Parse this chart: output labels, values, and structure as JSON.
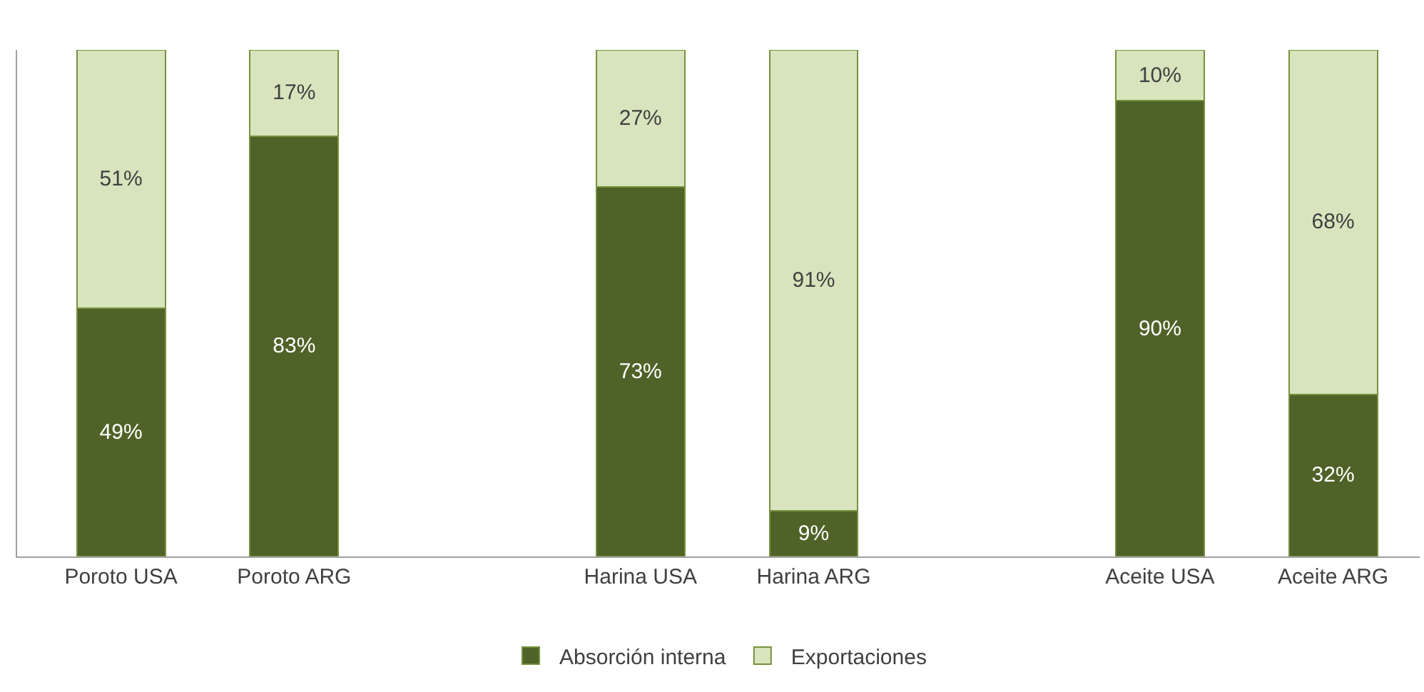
{
  "chart_data": {
    "type": "bar",
    "stacked": true,
    "relative": false,
    "categories": [
      "Poroto USA",
      "Poroto ARG",
      null,
      "Harina USA",
      "Harina ARG",
      null,
      "Aceite USA",
      "Aceite ARG"
    ],
    "series": [
      {
        "name": "Absorción interna",
        "color": "#4f6228",
        "values": [
          49,
          83,
          null,
          73,
          9,
          null,
          90,
          32
        ],
        "value_labels": [
          "49%",
          "83%",
          null,
          "73%",
          "9%",
          null,
          "90%",
          "32%"
        ]
      },
      {
        "name": "Exportaciones",
        "color": "#d7e4bd",
        "values": [
          51,
          17,
          null,
          27,
          91,
          null,
          10,
          68
        ],
        "value_labels": [
          "51%",
          "17%",
          null,
          "27%",
          "91%",
          null,
          "10%",
          "68%"
        ]
      }
    ],
    "legend": "bottom"
  }
}
